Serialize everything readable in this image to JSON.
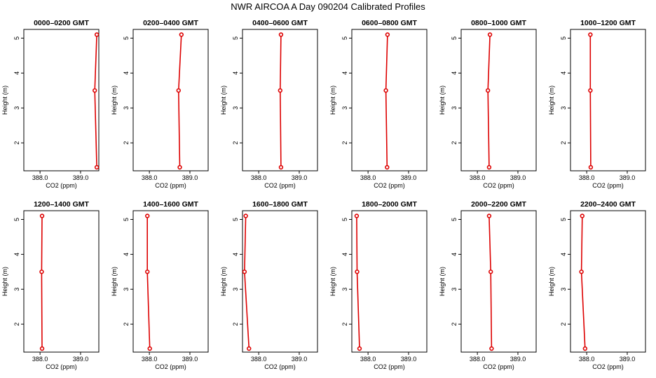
{
  "title": "NWR AIRCOA A  Day 090204  Calibrated Profiles",
  "chart_data": {
    "type": "line",
    "xlabel": "CO2 (ppm)",
    "ylabel": "Height (m)",
    "xlim": [
      387.6,
      389.45
    ],
    "ylim": [
      1.2,
      5.25
    ],
    "x_ticks": [
      "388.0",
      "389.0"
    ],
    "x_tick_values": [
      388.0,
      389.0
    ],
    "y_ticks": [
      "2",
      "3",
      "4",
      "5"
    ],
    "y_tick_values": [
      2,
      3,
      4,
      5
    ],
    "heights": [
      1.3,
      3.5,
      5.1
    ],
    "panels": [
      {
        "title": "0000–0200 GMT",
        "co2": [
          389.4,
          389.35,
          389.4
        ]
      },
      {
        "title": "0200–0400 GMT",
        "co2": [
          388.75,
          388.72,
          388.79
        ]
      },
      {
        "title": "0400–0600 GMT",
        "co2": [
          388.55,
          388.53,
          388.55
        ]
      },
      {
        "title": "0600–0800 GMT",
        "co2": [
          388.47,
          388.44,
          388.48
        ]
      },
      {
        "title": "0800–1000 GMT",
        "co2": [
          388.29,
          388.26,
          388.31
        ]
      },
      {
        "title": "1000–1200 GMT",
        "co2": [
          388.1,
          388.09,
          388.09
        ]
      },
      {
        "title": "1200–1400 GMT",
        "co2": [
          388.05,
          388.04,
          388.05
        ]
      },
      {
        "title": "1400–1600 GMT",
        "co2": [
          388.01,
          387.95,
          387.95
        ]
      },
      {
        "title": "1600–1800 GMT",
        "co2": [
          387.76,
          387.65,
          387.68
        ]
      },
      {
        "title": "1800–2000 GMT",
        "co2": [
          387.79,
          387.73,
          387.72
        ]
      },
      {
        "title": "2000–2200 GMT",
        "co2": [
          388.35,
          388.33,
          388.29
        ]
      },
      {
        "title": "2200–2400 GMT",
        "co2": [
          387.96,
          387.87,
          387.89
        ]
      }
    ]
  }
}
